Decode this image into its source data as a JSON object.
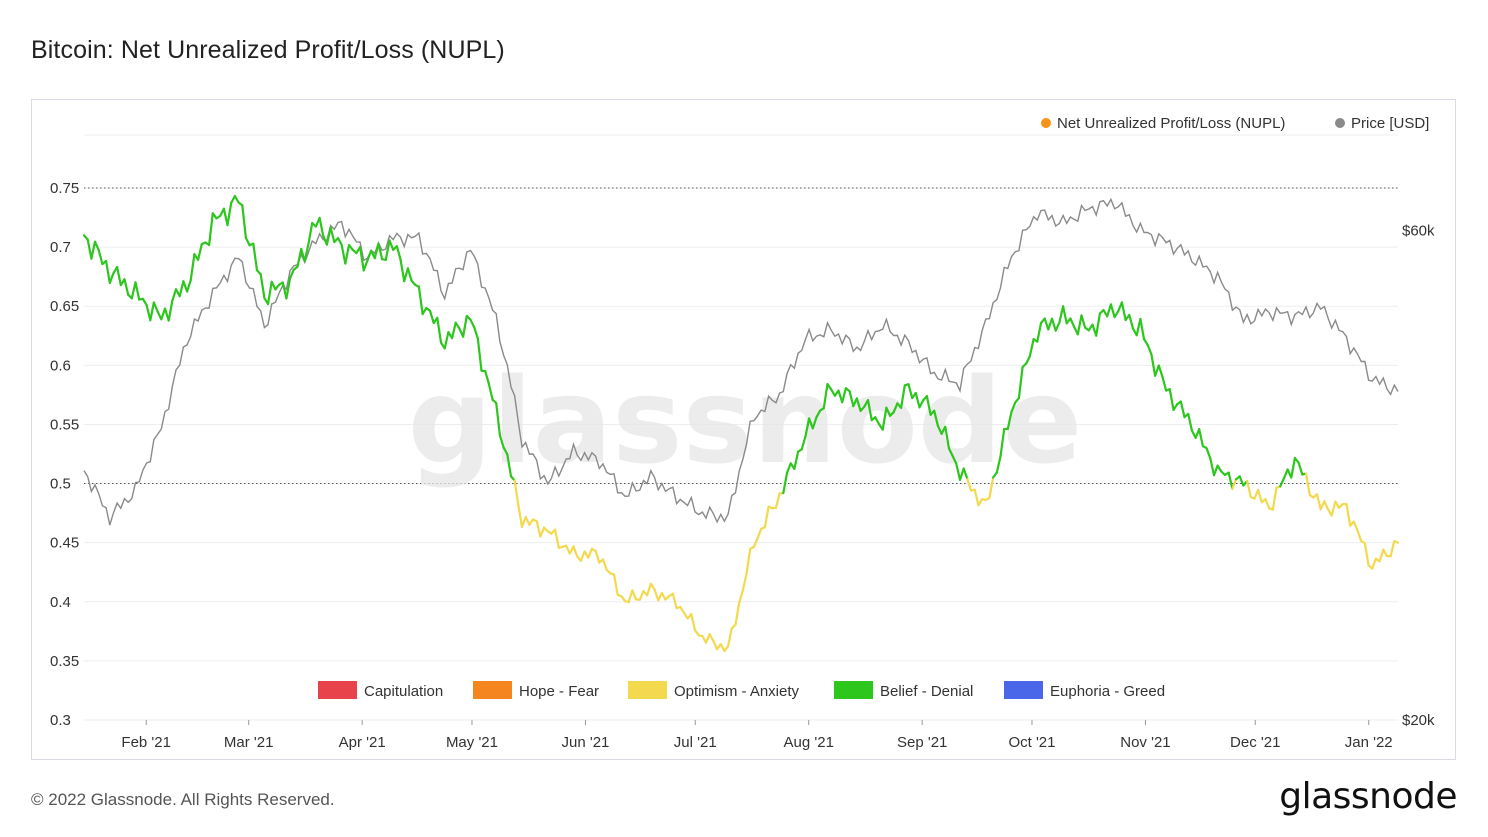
{
  "title": "Bitcoin: Net Unrealized Profit/Loss (NUPL)",
  "footer": "© 2022 Glassnode. All Rights Reserved.",
  "brand": "glassnode",
  "watermark": "glassnode",
  "colors": {
    "capitulation": "#e8434a",
    "hope_fear": "#f5851f",
    "optimism_anxiety": "#f2d94e",
    "belief_denial": "#2cc61d",
    "euphoria_greed": "#4a67ea",
    "price": "#8a8a8a",
    "nupl_dot": "#f7931a",
    "grid": "#eceef1"
  },
  "chart_data": {
    "type": "line",
    "legend_top": [
      {
        "name": "Net Unrealized Profit/Loss (NUPL)",
        "icon": "orange-dot"
      },
      {
        "name": "Price [USD]",
        "icon": "gray-dot"
      }
    ],
    "legend_bottom": [
      {
        "name": "Capitulation",
        "color": "#e8434a"
      },
      {
        "name": "Hope - Fear",
        "color": "#f5851f"
      },
      {
        "name": "Optimism - Anxiety",
        "color": "#f2d94e"
      },
      {
        "name": "Belief - Denial",
        "color": "#2cc61d"
      },
      {
        "name": "Euphoria - Greed",
        "color": "#4a67ea"
      }
    ],
    "y_left": {
      "ticks": [
        "0.75",
        "0.7",
        "0.65",
        "0.6",
        "0.55",
        "0.5",
        "0.45",
        "0.4",
        "0.35",
        "0.3"
      ],
      "min": 0.3,
      "max": 0.75
    },
    "y_right": {
      "ticks": [
        "$60k",
        "$20k"
      ],
      "scale": "log"
    },
    "x_ticks": [
      "Feb '21",
      "Mar '21",
      "Apr '21",
      "May '21",
      "Jun '21",
      "Jul '21",
      "Aug '21",
      "Sep '21",
      "Oct '21",
      "Nov '21",
      "Dec '21",
      "Jan '22"
    ],
    "reference_lines": [
      0.75,
      0.5
    ],
    "x_start": "2021-01-15",
    "x_end": "2022-01-09",
    "nupl_weekly": [
      0.71,
      0.68,
      0.66,
      0.64,
      0.67,
      0.72,
      0.74,
      0.66,
      0.67,
      0.72,
      0.7,
      0.69,
      0.7,
      0.66,
      0.62,
      0.64,
      0.56,
      0.47,
      0.46,
      0.44,
      0.44,
      0.4,
      0.41,
      0.4,
      0.37,
      0.36,
      0.45,
      0.49,
      0.54,
      0.58,
      0.57,
      0.55,
      0.58,
      0.56,
      0.51,
      0.48,
      0.56,
      0.63,
      0.64,
      0.63,
      0.65,
      0.63,
      0.58,
      0.55,
      0.51,
      0.5,
      0.48,
      0.52,
      0.48,
      0.48,
      0.43,
      0.45
    ],
    "price_weekly_usd": [
      35000,
      31500,
      33500,
      38500,
      47000,
      52000,
      56500,
      48500,
      54500,
      58500,
      61000,
      56500,
      59000,
      59000,
      52000,
      57500,
      49000,
      37500,
      34000,
      36500,
      35800,
      33000,
      34500,
      33000,
      31800,
      31500,
      39500,
      41500,
      47000,
      48000,
      46000,
      48500,
      46500,
      43500,
      42500,
      48500,
      56500,
      62500,
      61000,
      63000,
      64000,
      60000,
      58500,
      56500,
      54000,
      49000,
      50000,
      49500,
      50500,
      47000,
      43000,
      41800
    ]
  }
}
